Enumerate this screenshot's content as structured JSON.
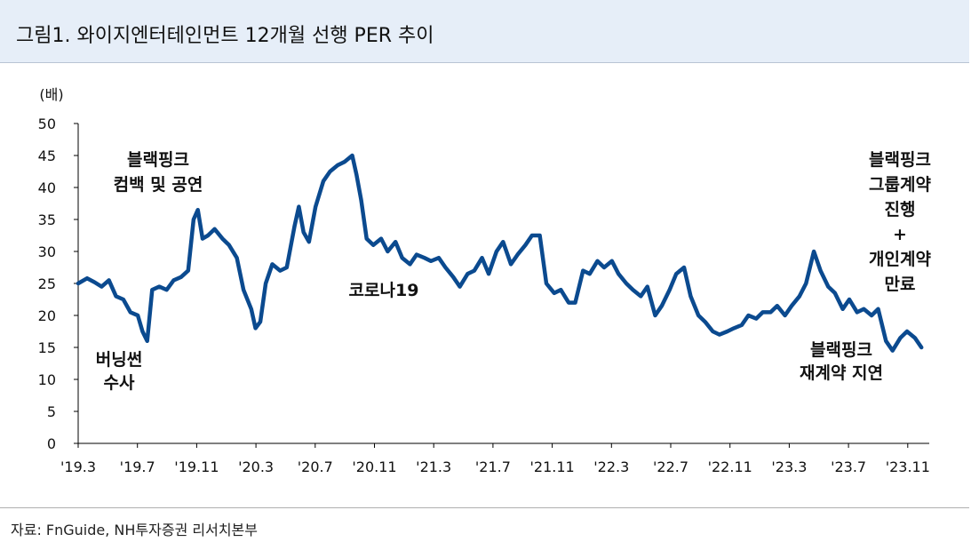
{
  "title": "그림1. 와이지엔터테인먼트 12개월 선행 PER 추이",
  "source": "자료: FnGuide, NH투자증권 리서치본부",
  "colors": {
    "line": "#0b4a8f",
    "header_bg": "#e6eef8"
  },
  "chart_data": {
    "type": "line",
    "title": "그림1. 와이지엔터테인먼트 12개월 선행 PER 추이",
    "ylabel": "(배)",
    "xlabel": "",
    "ylim": [
      0,
      50
    ],
    "yticks": [
      0,
      5,
      10,
      15,
      20,
      25,
      30,
      35,
      40,
      45,
      50
    ],
    "xlim": [
      "2019-03",
      "2024-02"
    ],
    "xticks": [
      "'19.3",
      "'19.7",
      "'19.11",
      "'20.3",
      "'20.7",
      "'20.11",
      "'21.3",
      "'21.7",
      "'21.11",
      "'22.3",
      "'22.7",
      "'22.11",
      "'23.3",
      "'23.7",
      "'23.11"
    ],
    "grid": false,
    "legend": "none",
    "series": [
      {
        "x": [
          "2019-03-01",
          "2019-03-20",
          "2019-04-05",
          "2019-04-20",
          "2019-05-05",
          "2019-05-20",
          "2019-06-05",
          "2019-06-20",
          "2019-07-05",
          "2019-07-15",
          "2019-07-25",
          "2019-08-05",
          "2019-08-20",
          "2019-09-05",
          "2019-09-20",
          "2019-10-05",
          "2019-10-20",
          "2019-11-01",
          "2019-11-10",
          "2019-11-20",
          "2019-12-01",
          "2019-12-15",
          "2020-01-01",
          "2020-01-15",
          "2020-02-01",
          "2020-02-15",
          "2020-03-01",
          "2020-03-10",
          "2020-03-20",
          "2020-04-01",
          "2020-04-15",
          "2020-05-01",
          "2020-05-15",
          "2020-06-01",
          "2020-06-10",
          "2020-06-20",
          "2020-07-01",
          "2020-07-15",
          "2020-08-01",
          "2020-08-15",
          "2020-09-01",
          "2020-09-15",
          "2020-10-01",
          "2020-10-10",
          "2020-10-20",
          "2020-11-01",
          "2020-11-15",
          "2020-12-01",
          "2020-12-15",
          "2021-01-01",
          "2021-01-15",
          "2021-02-01",
          "2021-02-15",
          "2021-03-01",
          "2021-03-15",
          "2021-04-01",
          "2021-04-15",
          "2021-05-01",
          "2021-05-15",
          "2021-06-01",
          "2021-06-15",
          "2021-07-01",
          "2021-07-15",
          "2021-08-01",
          "2021-08-15",
          "2021-09-01",
          "2021-09-15",
          "2021-10-01",
          "2021-10-15",
          "2021-11-01",
          "2021-11-15",
          "2021-12-01",
          "2021-12-15",
          "2022-01-01",
          "2022-01-15",
          "2022-02-01",
          "2022-02-15",
          "2022-03-01",
          "2022-03-15",
          "2022-04-01",
          "2022-04-15",
          "2022-05-01",
          "2022-05-15",
          "2022-06-01",
          "2022-06-15",
          "2022-07-01",
          "2022-07-15",
          "2022-08-01",
          "2022-08-15",
          "2022-09-01",
          "2022-09-15",
          "2022-10-01",
          "2022-10-15",
          "2022-11-01",
          "2022-11-15",
          "2022-12-01",
          "2022-12-15",
          "2023-01-01",
          "2023-01-15",
          "2023-02-01",
          "2023-02-15",
          "2023-03-01",
          "2023-03-15",
          "2023-04-01",
          "2023-04-15",
          "2023-05-01",
          "2023-05-15",
          "2023-06-01",
          "2023-06-15",
          "2023-07-01",
          "2023-07-15",
          "2023-08-01",
          "2023-08-15",
          "2023-09-01",
          "2023-09-15",
          "2023-10-01",
          "2023-10-15",
          "2023-11-01",
          "2023-11-15",
          "2023-12-01",
          "2023-12-15",
          "2024-01-01",
          "2024-01-15"
        ],
        "values": [
          25.0,
          25.8,
          25.2,
          24.5,
          25.5,
          23.0,
          22.5,
          20.5,
          20.0,
          17.5,
          16.0,
          24.0,
          24.5,
          24.0,
          25.5,
          26.0,
          27.0,
          35.0,
          36.5,
          32.0,
          32.5,
          33.5,
          32.0,
          31.0,
          29.0,
          24.0,
          21.0,
          18.0,
          19.0,
          25.0,
          28.0,
          27.0,
          27.5,
          34.0,
          37.0,
          33.0,
          31.5,
          37.0,
          41.0,
          42.5,
          43.5,
          44.0,
          45.0,
          42.0,
          38.0,
          32.0,
          31.0,
          32.0,
          30.0,
          31.5,
          29.0,
          28.0,
          29.5,
          29.0,
          28.5,
          29.0,
          27.5,
          26.0,
          24.5,
          26.5,
          27.0,
          29.0,
          26.5,
          30.0,
          31.5,
          28.0,
          29.5,
          31.0,
          32.5,
          32.5,
          25.0,
          23.5,
          24.0,
          22.0,
          22.0,
          27.0,
          26.5,
          28.5,
          27.5,
          28.5,
          26.5,
          25.0,
          24.0,
          23.0,
          24.5,
          20.0,
          21.5,
          24.0,
          26.5,
          27.5,
          23.0,
          20.0,
          19.0,
          17.5,
          17.0,
          17.5,
          18.0,
          18.5,
          20.0,
          19.5,
          20.5,
          20.5,
          21.5,
          20.0,
          21.5,
          23.0,
          25.0,
          30.0,
          27.0,
          24.5,
          23.5,
          21.0,
          22.5,
          20.5,
          21.0,
          20.0,
          21.0,
          16.0,
          14.5,
          16.5,
          17.5,
          16.5,
          15.0
        ]
      }
    ],
    "annotations": [
      {
        "lines": [
          "블랙핑크",
          "컴백 및 공연"
        ]
      },
      {
        "lines": [
          "버닝썬",
          "수사"
        ]
      },
      {
        "lines": [
          "코로나19"
        ]
      },
      {
        "lines": [
          "블랙핑크",
          "그룹계약",
          "진행",
          "+",
          "개인계약",
          "만료"
        ]
      },
      {
        "lines": [
          "블랙핑크",
          "재계약 지연"
        ]
      }
    ]
  }
}
